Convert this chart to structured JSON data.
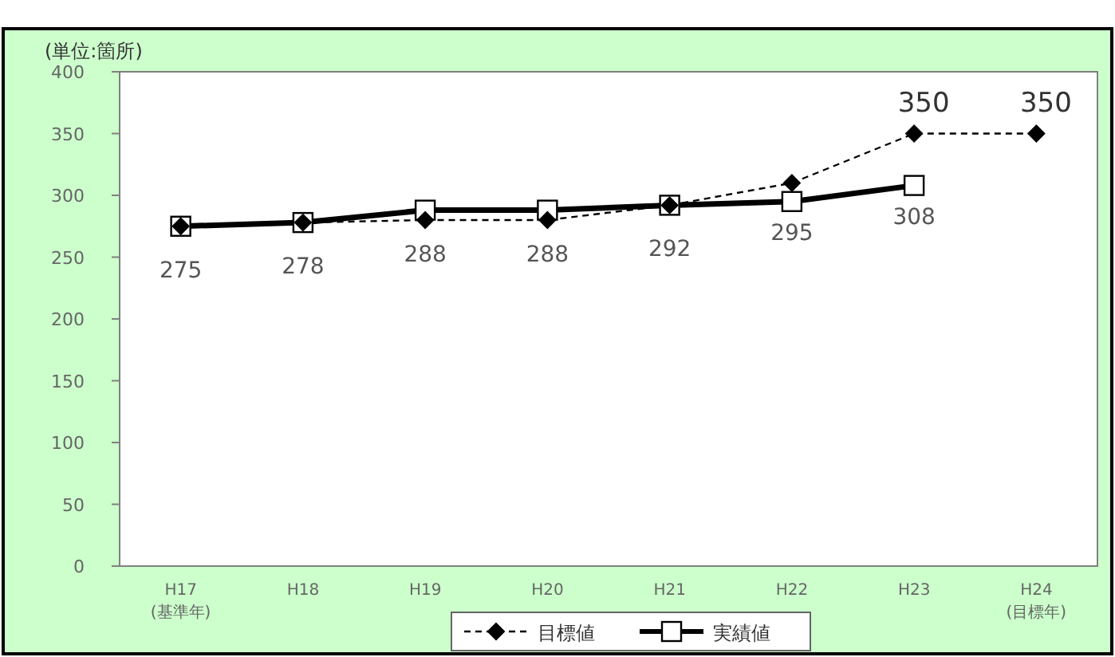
{
  "chart_data": {
    "type": "line",
    "ylabel": "(単位:箇所)",
    "categories": [
      "H17\n(基準年)",
      "H18",
      "H19",
      "H20",
      "H21",
      "H22",
      "H23",
      "H24\n(目標年)"
    ],
    "series": [
      {
        "name": "目標値",
        "color": "#000000",
        "marker": "diamond",
        "line_style": "dashed",
        "values": [
          275,
          278,
          280,
          280,
          292,
          310,
          350,
          350
        ],
        "value_labels": [
          null,
          null,
          null,
          null,
          null,
          null,
          "350",
          "350"
        ]
      },
      {
        "name": "実績値",
        "color": "#000000",
        "marker": "square",
        "line_style": "solid",
        "values": [
          275,
          278,
          288,
          288,
          292,
          295,
          308,
          null
        ],
        "value_labels": [
          "275",
          "278",
          "288",
          "288",
          "292",
          "295",
          "308",
          null
        ]
      }
    ],
    "ylim": [
      0,
      400
    ],
    "yticks": [
      0,
      50,
      100,
      150,
      200,
      250,
      300,
      350,
      400
    ],
    "grid": false,
    "legend": "bottom"
  }
}
